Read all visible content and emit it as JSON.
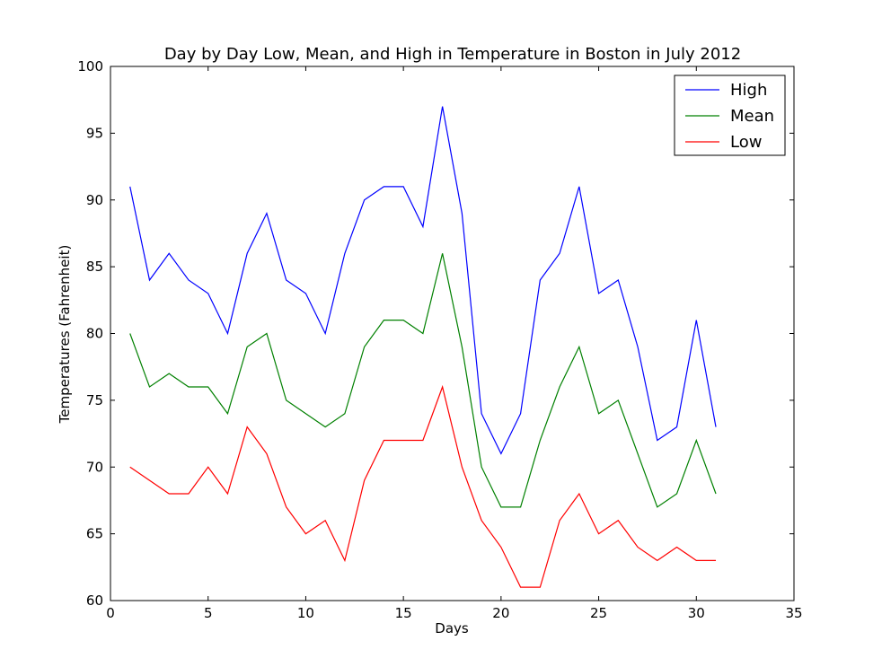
{
  "chart_data": {
    "type": "line",
    "title": "Day by Day Low, Mean, and High in Temperature in Boston in July 2012",
    "xlabel": "Days",
    "ylabel": "Temperatures (Fahrenheit)",
    "xlim": [
      0,
      35
    ],
    "ylim": [
      60,
      100
    ],
    "xticks": [
      0,
      5,
      10,
      15,
      20,
      25,
      30,
      35
    ],
    "yticks": [
      60,
      65,
      70,
      75,
      80,
      85,
      90,
      95,
      100
    ],
    "grid": false,
    "legend_position": "top-right",
    "x": [
      1,
      2,
      3,
      4,
      5,
      6,
      7,
      8,
      9,
      10,
      11,
      12,
      13,
      14,
      15,
      16,
      17,
      18,
      19,
      20,
      21,
      22,
      23,
      24,
      25,
      26,
      27,
      28,
      29,
      30,
      31
    ],
    "series": [
      {
        "name": "High",
        "color": "#0000ff",
        "values": [
          91,
          84,
          86,
          84,
          83,
          80,
          86,
          89,
          84,
          83,
          80,
          86,
          90,
          91,
          91,
          88,
          97,
          89,
          74,
          71,
          74,
          84,
          86,
          91,
          83,
          84,
          79,
          72,
          73,
          81,
          73
        ]
      },
      {
        "name": "Mean",
        "color": "#008000",
        "values": [
          80,
          76,
          77,
          76,
          76,
          74,
          79,
          80,
          75,
          74,
          73,
          74,
          79,
          81,
          81,
          80,
          86,
          79,
          70,
          67,
          67,
          72,
          76,
          79,
          74,
          75,
          71,
          67,
          68,
          72,
          68
        ]
      },
      {
        "name": "Low",
        "color": "#ff0000",
        "values": [
          70,
          69,
          68,
          68,
          70,
          68,
          73,
          71,
          67,
          65,
          66,
          63,
          69,
          72,
          72,
          72,
          76,
          70,
          66,
          64,
          61,
          61,
          66,
          68,
          65,
          66,
          64,
          63,
          64,
          63,
          63
        ]
      }
    ]
  }
}
